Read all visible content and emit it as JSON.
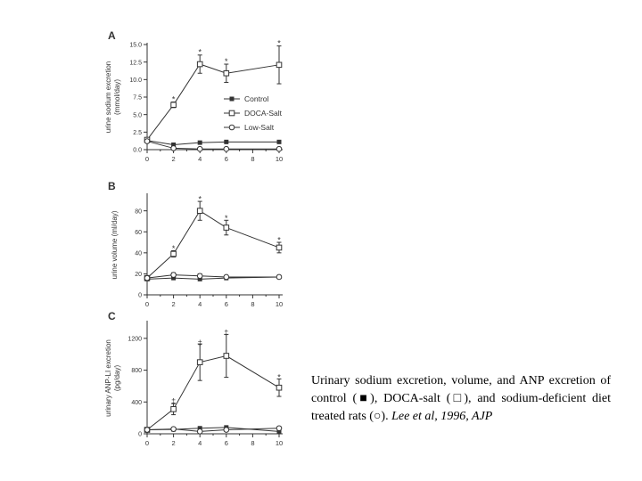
{
  "chart_data": [
    {
      "type": "line",
      "panel_label": "A",
      "ylabel_line1": "urine sodium excretion",
      "ylabel_line2": "(mmol/day)",
      "x": [
        0,
        2,
        4,
        6,
        8,
        10
      ],
      "xticks": [
        "0",
        "2",
        "4",
        "6",
        "8",
        "10"
      ],
      "yticks": [
        "0.0",
        "2.5",
        "5.0",
        "7.5",
        "10.0",
        "12.5",
        "15.0"
      ],
      "ylim": [
        0,
        15
      ],
      "legend_position": "right",
      "series": [
        {
          "name": "Control",
          "marker": "filled-square",
          "x": [
            0,
            2,
            4,
            6,
            10
          ],
          "values": [
            1.3,
            0.7,
            1.0,
            1.1,
            1.1
          ],
          "err": [
            0.1,
            0.1,
            0.1,
            0.1,
            0.1
          ]
        },
        {
          "name": "DOCA-Salt",
          "marker": "open-square",
          "x": [
            0,
            2,
            4,
            6,
            10
          ],
          "values": [
            1.4,
            6.4,
            12.2,
            10.9,
            12.1
          ],
          "err": [
            0.2,
            0.4,
            1.3,
            1.3,
            2.7
          ]
        },
        {
          "name": "Low-Salt",
          "marker": "open-circle",
          "x": [
            0,
            2,
            4,
            6,
            10
          ],
          "values": [
            1.2,
            0.2,
            0.1,
            0.1,
            0.1
          ],
          "err": [
            0.1,
            0.05,
            0.05,
            0.05,
            0.05
          ]
        }
      ],
      "annotations": [
        {
          "x": 2,
          "y": 7.2,
          "text": "*"
        },
        {
          "x": 4,
          "y": 13.9,
          "text": "*"
        },
        {
          "x": 6,
          "y": 12.6,
          "text": "*"
        },
        {
          "x": 10,
          "y": 15.2,
          "text": "*"
        }
      ]
    },
    {
      "type": "line",
      "panel_label": "B",
      "ylabel_line1": "urine volume (ml/day)",
      "x": [
        0,
        2,
        4,
        6,
        8,
        10
      ],
      "xticks": [
        "0",
        "2",
        "4",
        "6",
        "8",
        "10"
      ],
      "yticks": [
        "0",
        "20",
        "40",
        "60",
        "80"
      ],
      "ylim": [
        0,
        95
      ],
      "series": [
        {
          "name": "Control",
          "marker": "filled-square",
          "x": [
            0,
            2,
            4,
            6,
            10
          ],
          "values": [
            15,
            16,
            15,
            16,
            17
          ],
          "err": [
            1,
            1,
            1,
            1,
            1
          ]
        },
        {
          "name": "DOCA-Salt",
          "marker": "open-square",
          "x": [
            0,
            2,
            4,
            6,
            10
          ],
          "values": [
            16,
            39,
            80,
            64,
            45
          ],
          "err": [
            2,
            3,
            9,
            7,
            5
          ]
        },
        {
          "name": "Low-Salt",
          "marker": "open-circle",
          "x": [
            0,
            2,
            4,
            6,
            10
          ],
          "values": [
            16,
            19,
            18,
            17,
            17
          ],
          "err": [
            1,
            2,
            2,
            1,
            1
          ]
        }
      ],
      "annotations": [
        {
          "x": 2,
          "y": 44,
          "text": "*"
        },
        {
          "x": 4,
          "y": 91,
          "text": "*"
        },
        {
          "x": 6,
          "y": 73,
          "text": "*"
        },
        {
          "x": 10,
          "y": 52,
          "text": "*"
        }
      ]
    },
    {
      "type": "line",
      "panel_label": "C",
      "ylabel_line1": "urinary ANP-LI excretion",
      "ylabel_line2": "(pg/day)",
      "x": [
        0,
        2,
        4,
        6,
        8,
        10
      ],
      "xticks": [
        "0",
        "2",
        "4",
        "6",
        "8",
        "10"
      ],
      "yticks": [
        "0",
        "400",
        "800",
        "1200"
      ],
      "ylim": [
        0,
        1400
      ],
      "series": [
        {
          "name": "Control",
          "marker": "filled-square",
          "x": [
            0,
            2,
            4,
            6,
            10
          ],
          "values": [
            50,
            55,
            70,
            80,
            30
          ],
          "err": [
            10,
            10,
            10,
            10,
            10
          ]
        },
        {
          "name": "DOCA-Salt",
          "marker": "open-square",
          "x": [
            0,
            2,
            4,
            6,
            10
          ],
          "values": [
            50,
            310,
            900,
            980,
            580
          ],
          "err": [
            10,
            70,
            230,
            270,
            110
          ]
        },
        {
          "name": "Low-Salt",
          "marker": "open-circle",
          "x": [
            0,
            2,
            4,
            6,
            10
          ],
          "values": [
            50,
            60,
            30,
            50,
            70
          ],
          "err": [
            10,
            10,
            10,
            10,
            10
          ]
        }
      ],
      "annotations": [
        {
          "x": 2,
          "y": 410,
          "text": "‡"
        },
        {
          "x": 4,
          "y": 1140,
          "text": "‡"
        },
        {
          "x": 6,
          "y": 1270,
          "text": "‡"
        },
        {
          "x": 10,
          "y": 710,
          "text": "*"
        }
      ]
    }
  ],
  "caption": {
    "text": "Urinary sodium excretion, volume, and ANP excretion of control (■), DOCA-salt (□), and sodium-deficient diet treated rats (○).",
    "citation": "Lee et al, 1996, AJP"
  },
  "colors": {
    "ink": "#333333",
    "background": "#ffffff"
  }
}
